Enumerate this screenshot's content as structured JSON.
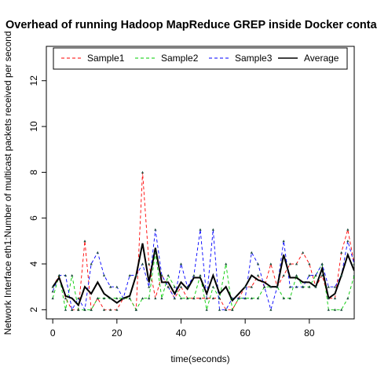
{
  "chart_data": {
    "type": "line",
    "title": "Overhead of running Hadoop MapReduce GREP inside Docker containers",
    "xlabel": "time(seconds)",
    "ylabel": "Network Interface eth1:Number of multicast packets received per second",
    "xlim": [
      -2,
      94
    ],
    "ylim": [
      1.6,
      13.5
    ],
    "x_ticks": [
      0,
      20,
      40,
      60,
      80
    ],
    "y_ticks": [
      2,
      4,
      6,
      8,
      10,
      12
    ],
    "legend_position": "top",
    "grid": false,
    "x": [
      0,
      2,
      4,
      6,
      8,
      10,
      12,
      14,
      16,
      18,
      20,
      22,
      24,
      26,
      28,
      30,
      32,
      34,
      36,
      38,
      40,
      42,
      44,
      46,
      48,
      50,
      52,
      54,
      56,
      58,
      60,
      62,
      64,
      66,
      68,
      70,
      72,
      74,
      76,
      78,
      80,
      82,
      84,
      86,
      88,
      90,
      92,
      94
    ],
    "series": [
      {
        "name": "Sample1",
        "color": "#ff0000",
        "dash": "4,3",
        "marker": false,
        "values": [
          3.0,
          3.5,
          2.5,
          2.0,
          2.0,
          5.0,
          2.0,
          2.5,
          2.0,
          2.0,
          2.0,
          2.5,
          2.5,
          2.0,
          8.0,
          4.0,
          2.5,
          3.5,
          3.0,
          2.5,
          3.0,
          2.5,
          2.5,
          2.5,
          2.5,
          2.5,
          2.5,
          2.0,
          2.0,
          2.5,
          3.0,
          3.0,
          3.5,
          3.0,
          4.0,
          3.0,
          3.5,
          4.0,
          4.0,
          4.5,
          4.0,
          3.0,
          3.5,
          2.5,
          2.5,
          4.5,
          5.5,
          4.0
        ]
      },
      {
        "name": "Sample2",
        "color": "#00cc00",
        "dash": "4,3",
        "marker": false,
        "values": [
          2.5,
          3.5,
          2.0,
          3.5,
          2.0,
          2.0,
          2.0,
          2.5,
          2.5,
          2.5,
          2.5,
          2.5,
          2.5,
          2.0,
          2.5,
          2.5,
          4.5,
          2.5,
          3.5,
          3.0,
          2.5,
          2.5,
          2.5,
          3.5,
          2.0,
          3.0,
          2.5,
          4.0,
          2.0,
          2.5,
          2.5,
          2.5,
          2.5,
          3.0,
          3.0,
          3.0,
          2.5,
          2.5,
          3.5,
          3.0,
          3.0,
          3.5,
          4.0,
          2.0,
          2.0,
          2.0,
          2.5,
          3.5
        ]
      },
      {
        "name": "Sample3",
        "color": "#0000ff",
        "dash": "4,3",
        "marker": false,
        "values": [
          2.8,
          3.5,
          3.5,
          2.0,
          2.5,
          2.0,
          4.0,
          4.5,
          3.5,
          3.0,
          3.0,
          2.5,
          3.5,
          3.5,
          4.0,
          3.0,
          5.5,
          3.5,
          3.0,
          2.5,
          4.0,
          3.0,
          3.5,
          5.5,
          2.5,
          5.5,
          2.0,
          2.0,
          2.5,
          2.5,
          2.5,
          4.5,
          4.0,
          3.0,
          2.0,
          3.0,
          5.0,
          3.0,
          3.0,
          3.0,
          3.5,
          3.5,
          4.0,
          3.0,
          3.0,
          3.5,
          5.0,
          4.0
        ]
      },
      {
        "name": "Average",
        "color": "#000000",
        "dash": "",
        "marker": true,
        "values": [
          3.0,
          3.4,
          2.6,
          2.5,
          2.2,
          3.0,
          2.7,
          3.2,
          2.7,
          2.5,
          2.3,
          2.5,
          2.6,
          3.5,
          4.9,
          3.2,
          4.7,
          3.2,
          3.2,
          2.7,
          3.2,
          2.9,
          3.4,
          3.4,
          2.7,
          3.5,
          2.7,
          3.0,
          2.4,
          2.7,
          3.0,
          3.5,
          3.3,
          3.2,
          3.0,
          3.0,
          4.4,
          3.4,
          3.4,
          3.2,
          3.2,
          3.0,
          3.8,
          2.5,
          2.7,
          3.5,
          4.4,
          3.7
        ]
      }
    ]
  }
}
